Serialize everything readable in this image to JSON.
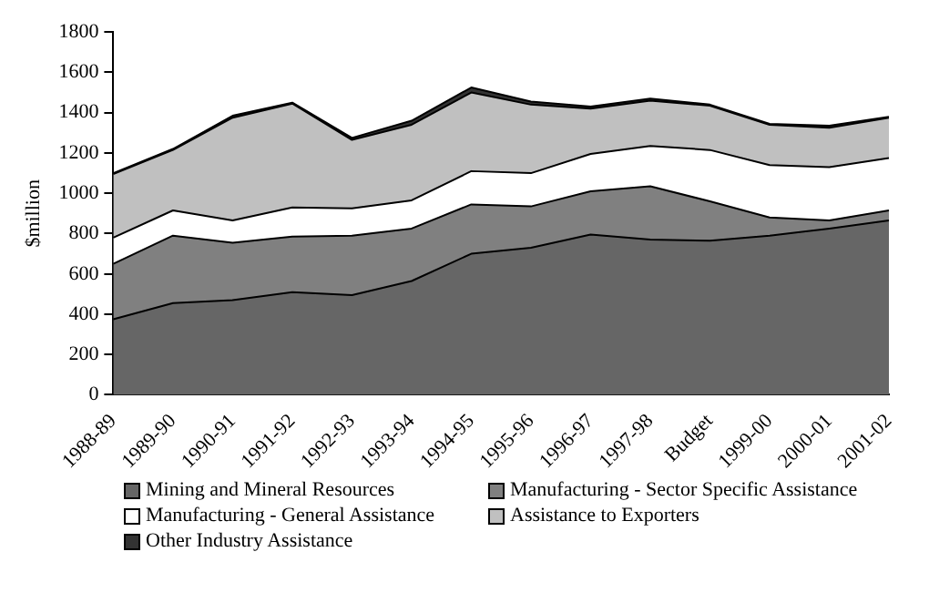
{
  "chart_data": {
    "type": "area",
    "stacked": true,
    "ylabel": "$million",
    "categories": [
      "1988-89",
      "1989-90",
      "1990-91",
      "1991-92",
      "1992-93",
      "1993-94",
      "1994-95",
      "1995-96",
      "1996-97",
      "1997-98",
      "Budget",
      "1999-00",
      "2000-01",
      "2001-02"
    ],
    "series": [
      {
        "name": "Mining and Mineral Resources",
        "color": "#666666",
        "values": [
          375,
          455,
          470,
          510,
          495,
          565,
          700,
          730,
          795,
          770,
          765,
          790,
          825,
          865
        ]
      },
      {
        "name": "Manufacturing - Sector Specific Assistance",
        "color": "#808080",
        "values": [
          275,
          335,
          285,
          275,
          295,
          260,
          245,
          205,
          215,
          265,
          195,
          90,
          40,
          50
        ]
      },
      {
        "name": "Manufacturing - General Assistance",
        "color": "#ffffff",
        "values": [
          130,
          125,
          110,
          145,
          135,
          140,
          165,
          165,
          185,
          200,
          255,
          260,
          265,
          260
        ]
      },
      {
        "name": "Assistance to Exporters",
        "color": "#c0c0c0",
        "values": [
          315,
          300,
          510,
          515,
          340,
          375,
          390,
          340,
          225,
          225,
          220,
          200,
          195,
          200
        ]
      },
      {
        "name": "Other Industry Assistance",
        "color": "#333333",
        "values": [
          5,
          5,
          10,
          5,
          10,
          20,
          25,
          15,
          10,
          10,
          5,
          5,
          10,
          5
        ]
      }
    ],
    "ylim": [
      0,
      1800
    ],
    "yticks": [
      0,
      200,
      400,
      600,
      800,
      1000,
      1200,
      1400,
      1600,
      1800
    ],
    "grid": false,
    "legend": "bottom"
  }
}
